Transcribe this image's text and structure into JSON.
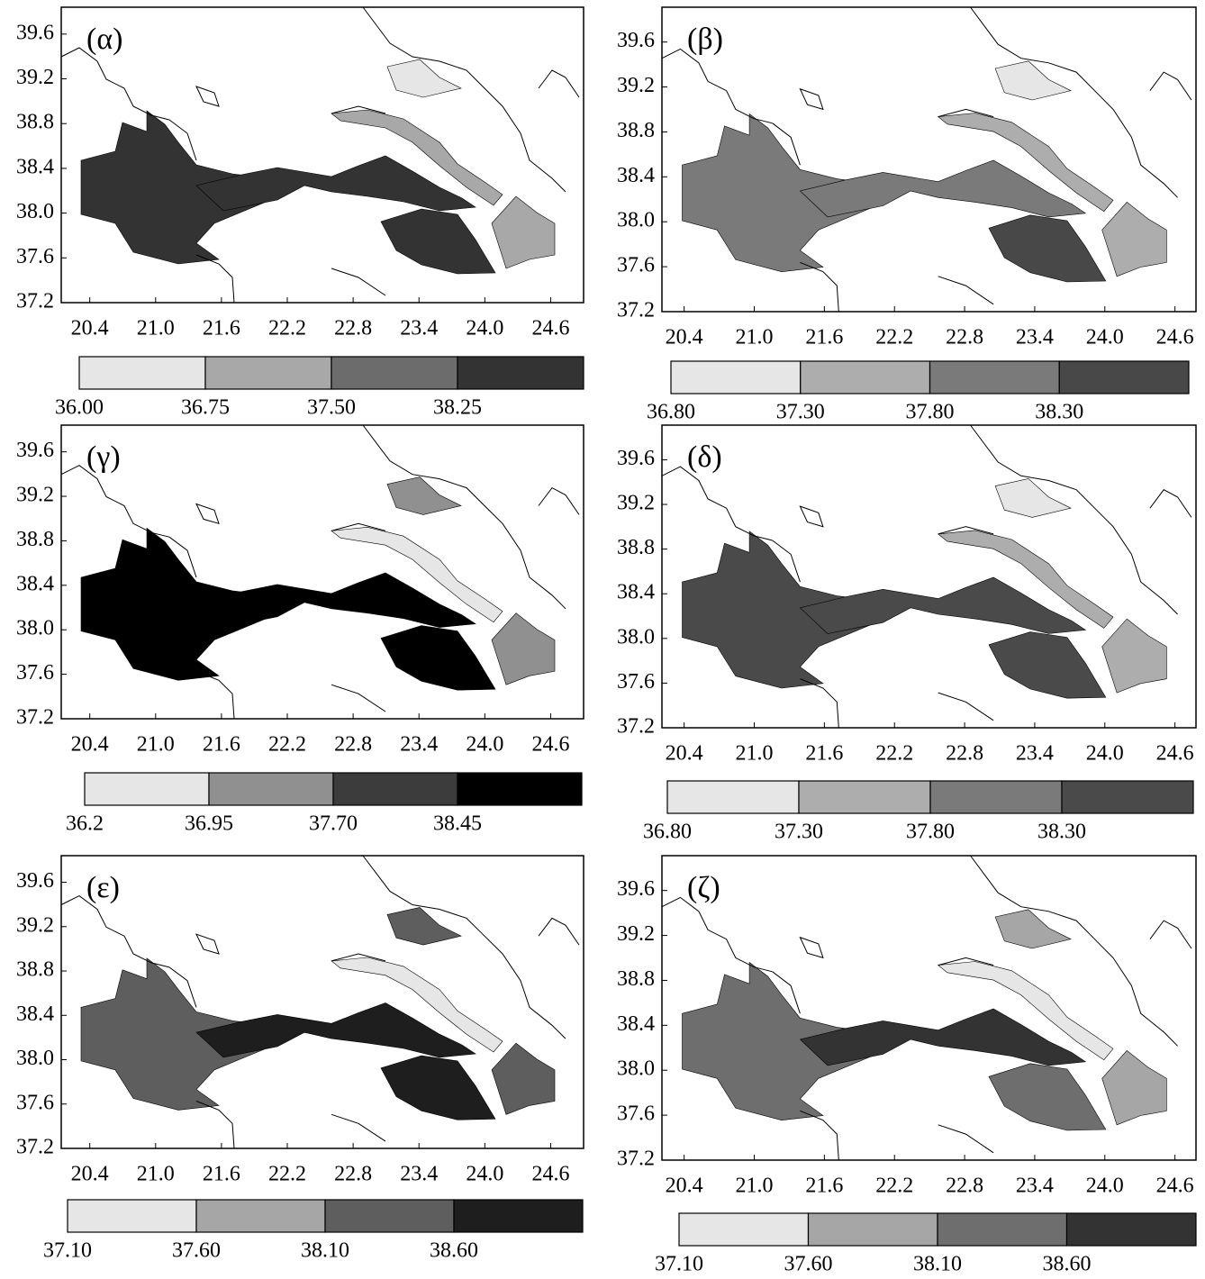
{
  "panels": [
    {
      "label": "(α)",
      "xlim": [
        20.14,
        24.9
      ],
      "ylim": [
        37.2,
        39.84
      ],
      "xticks": [
        20.4,
        {
          "value": 21,
          "label": "21.0"
        },
        21.6,
        22.2,
        22.8,
        23.4,
        {
          "value": 24,
          "label": "24.0"
        },
        24.6
      ],
      "yticks": [
        39.6,
        39.2,
        38.8,
        38.4,
        {
          "value": 38,
          "label": "38.0"
        },
        37.6,
        37.2
      ],
      "colorbar": {
        "colors": [
          "#e6e6e6",
          "#a8a8a8",
          "#6c6c6c",
          "#333333"
        ],
        "ticks": [
          {
            "value": 36,
            "label": "36.00"
          },
          36.75,
          {
            "value": 37.5,
            "label": "37.50"
          },
          38.25
        ]
      }
    },
    {
      "label": "(β)",
      "xlim": [
        20.21,
        24.78
      ],
      "ylim": [
        37.2,
        39.91
      ],
      "xticks": [
        20.4,
        {
          "value": 21,
          "label": "21.0"
        },
        21.6,
        22.2,
        22.8,
        23.4,
        {
          "value": 24,
          "label": "24.0"
        },
        24.6
      ],
      "yticks": [
        39.6,
        39.2,
        38.8,
        38.4,
        {
          "value": 38,
          "label": "38.0"
        },
        37.6,
        37.2
      ],
      "colorbar": {
        "colors": [
          "#e6e6e6",
          "#adadad",
          "#7a7a7a",
          "#484848"
        ],
        "ticks": [
          {
            "value": 36.8,
            "label": "36.80"
          },
          {
            "value": 37.3,
            "label": "37.30"
          },
          {
            "value": 37.8,
            "label": "37.80"
          },
          {
            "value": 38.3,
            "label": "38.30"
          }
        ]
      }
    },
    {
      "label": "(γ)",
      "xlim": [
        20.14,
        24.9
      ],
      "ylim": [
        37.2,
        39.84
      ],
      "xticks": [
        20.4,
        {
          "value": 21,
          "label": "21.0"
        },
        21.6,
        22.2,
        22.8,
        23.4,
        {
          "value": 24,
          "label": "24.0"
        },
        24.6
      ],
      "yticks": [
        39.6,
        39.2,
        38.8,
        38.4,
        {
          "value": 38,
          "label": "38.0"
        },
        37.6,
        37.2
      ],
      "colorbar": {
        "colors": [
          "#e6e6e6",
          "#909090",
          "#3c3c3c",
          "#000000"
        ],
        "ticks": [
          36.2,
          36.95,
          {
            "value": 37.7,
            "label": "37.70"
          },
          38.45
        ]
      }
    },
    {
      "label": "(δ)",
      "xlim": [
        20.21,
        24.78
      ],
      "ylim": [
        37.2,
        39.91
      ],
      "xticks": [
        20.4,
        {
          "value": 21,
          "label": "21.0"
        },
        21.6,
        22.2,
        22.8,
        23.4,
        {
          "value": 24,
          "label": "24.0"
        },
        24.6
      ],
      "yticks": [
        39.6,
        39.2,
        38.8,
        38.4,
        {
          "value": 38,
          "label": "38.0"
        },
        37.6,
        37.2
      ],
      "colorbar": {
        "colors": [
          "#e6e6e6",
          "#adadad",
          "#7a7a7a",
          "#4a4a4a"
        ],
        "ticks": [
          {
            "value": 36.8,
            "label": "36.80"
          },
          {
            "value": 37.3,
            "label": "37.30"
          },
          {
            "value": 37.8,
            "label": "37.80"
          },
          {
            "value": 38.3,
            "label": "38.30"
          }
        ]
      }
    },
    {
      "label": "(ε)",
      "xlim": [
        20.14,
        24.9
      ],
      "ylim": [
        37.2,
        39.84
      ],
      "xticks": [
        20.4,
        {
          "value": 21,
          "label": "21.0"
        },
        21.6,
        22.2,
        22.8,
        23.4,
        {
          "value": 24,
          "label": "24.0"
        },
        24.6
      ],
      "yticks": [
        39.6,
        39.2,
        38.8,
        38.4,
        {
          "value": 38,
          "label": "38.0"
        },
        37.6,
        37.2
      ],
      "colorbar": {
        "colors": [
          "#e6e6e6",
          "#a6a6a6",
          "#5e5e5e",
          "#1e1e1e"
        ],
        "ticks": [
          {
            "value": 37.1,
            "label": "37.10"
          },
          {
            "value": 37.6,
            "label": "37.60"
          },
          {
            "value": 38.1,
            "label": "38.10"
          },
          {
            "value": 38.6,
            "label": "38.60"
          }
        ]
      }
    },
    {
      "label": "(ζ)",
      "xlim": [
        20.21,
        24.78
      ],
      "ylim": [
        37.2,
        39.91
      ],
      "xticks": [
        20.4,
        {
          "value": 21,
          "label": "21.0"
        },
        21.6,
        22.2,
        22.8,
        23.4,
        {
          "value": 24,
          "label": "24.0"
        },
        24.6
      ],
      "yticks": [
        39.6,
        39.2,
        38.8,
        38.4,
        {
          "value": 38,
          "label": "38.0"
        },
        37.6,
        37.2
      ],
      "colorbar": {
        "colors": [
          "#e6e6e6",
          "#a6a6a6",
          "#6e6e6e",
          "#333333"
        ],
        "ticks": [
          {
            "value": 37.1,
            "label": "37.10"
          },
          {
            "value": 37.6,
            "label": "37.60"
          },
          {
            "value": 38.1,
            "label": "38.10"
          },
          {
            "value": 38.6,
            "label": "38.60"
          }
        ]
      }
    }
  ]
}
